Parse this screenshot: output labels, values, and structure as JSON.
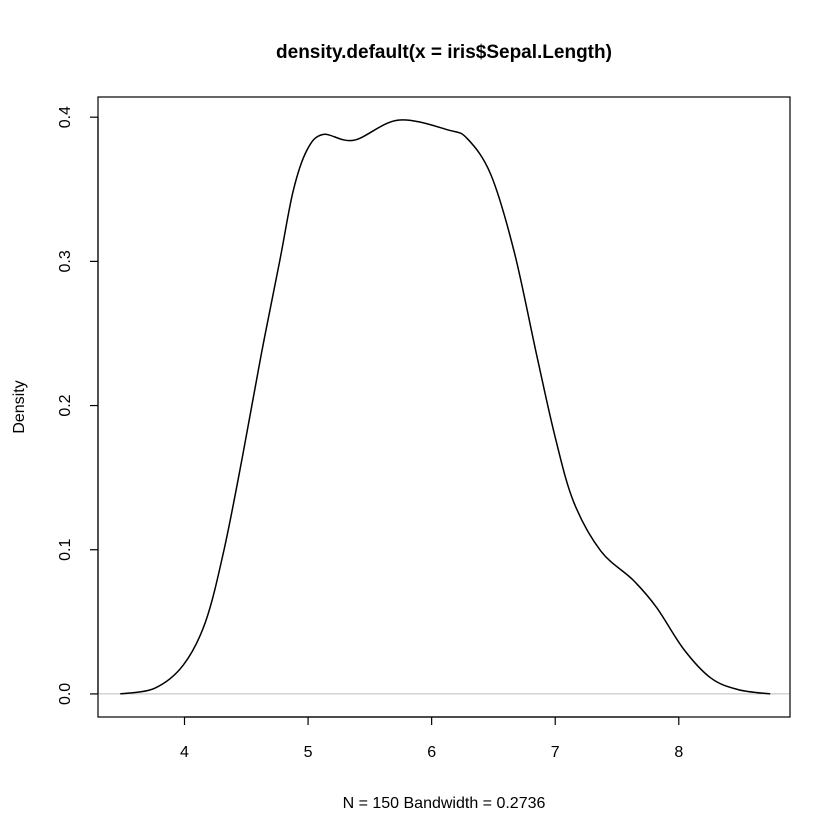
{
  "chart_data": {
    "type": "line",
    "title": "density.default(x = iris$Sepal.Length)",
    "xlabel": "N = 150   Bandwidth = 0.2736",
    "ylabel": "Density",
    "xlim": [
      3.3,
      8.9
    ],
    "ylim": [
      -0.016,
      0.414
    ],
    "xticks": [
      "4",
      "5",
      "6",
      "7",
      "8"
    ],
    "yticks": [
      "0.0",
      "0.1",
      "0.2",
      "0.3",
      "0.4"
    ],
    "grid": false,
    "line_color": "#000000",
    "zero_line_color": "#bebebe",
    "series": [
      {
        "x": [
          3.48,
          3.76,
          3.99,
          4.17,
          4.32,
          4.47,
          4.62,
          4.77,
          4.88,
          4.99,
          5.12,
          5.37,
          5.73,
          6.14,
          6.29,
          6.48,
          6.67,
          6.85,
          7.0,
          7.15,
          7.37,
          7.63,
          7.82,
          8.04,
          8.26,
          8.48,
          8.74
        ],
        "y": [
          0.0,
          0.004,
          0.02,
          0.05,
          0.1,
          0.165,
          0.235,
          0.3,
          0.349,
          0.377,
          0.388,
          0.384,
          0.398,
          0.391,
          0.385,
          0.36,
          0.306,
          0.235,
          0.178,
          0.133,
          0.099,
          0.079,
          0.06,
          0.031,
          0.011,
          0.003,
          0.0
        ]
      }
    ]
  }
}
